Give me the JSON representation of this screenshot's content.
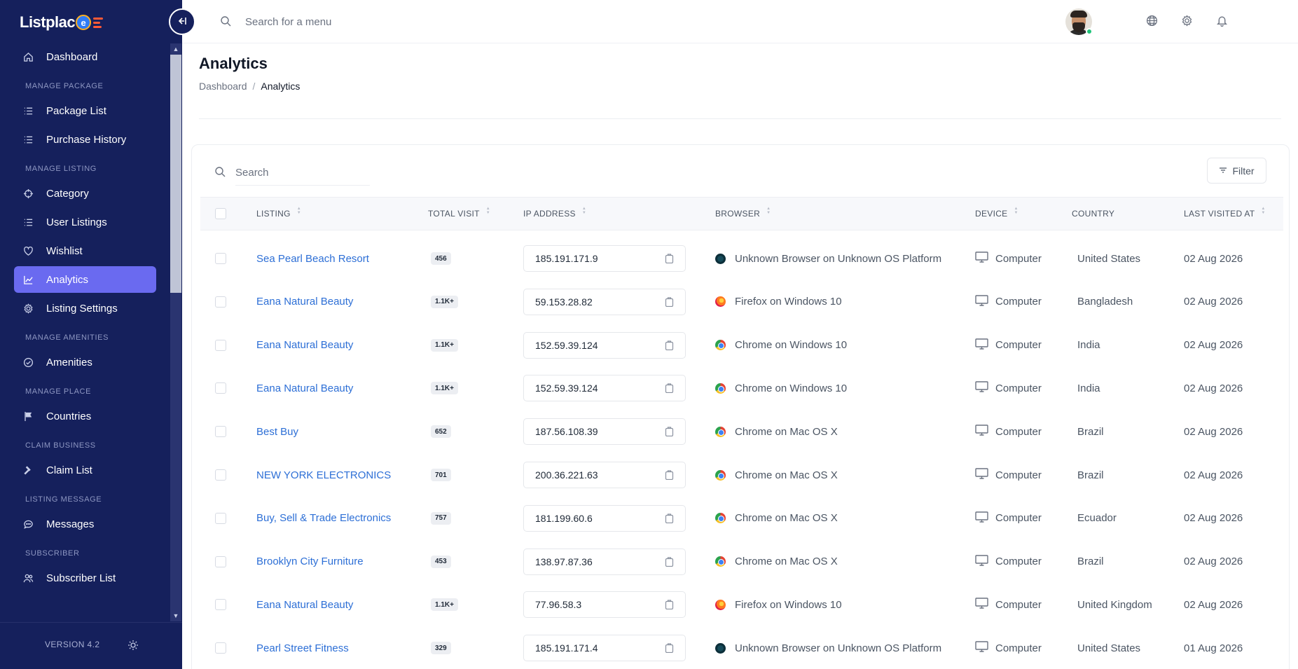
{
  "brand": {
    "name": "Listplac",
    "badge": "e"
  },
  "sidebar": {
    "items": [
      {
        "type": "item",
        "label": "Dashboard",
        "icon": "home-icon",
        "name": "sidebar-item-dashboard",
        "active": false
      },
      {
        "type": "section",
        "label": "MANAGE PACKAGE"
      },
      {
        "type": "item",
        "label": "Package List",
        "icon": "list-icon",
        "name": "sidebar-item-package-list",
        "active": false
      },
      {
        "type": "item",
        "label": "Purchase History",
        "icon": "list-icon",
        "name": "sidebar-item-purchase-history",
        "active": false
      },
      {
        "type": "section",
        "label": "MANAGE LISTING"
      },
      {
        "type": "item",
        "label": "Category",
        "icon": "crosshair-icon",
        "name": "sidebar-item-category",
        "active": false
      },
      {
        "type": "item",
        "label": "User Listings",
        "icon": "list-icon",
        "name": "sidebar-item-user-listings",
        "active": false
      },
      {
        "type": "item",
        "label": "Wishlist",
        "icon": "heart-icon",
        "name": "sidebar-item-wishlist",
        "active": false
      },
      {
        "type": "item",
        "label": "Analytics",
        "icon": "chart-line-icon",
        "name": "sidebar-item-analytics",
        "active": true
      },
      {
        "type": "item",
        "label": "Listing Settings",
        "icon": "gear-icon",
        "name": "sidebar-item-listing-settings",
        "active": false
      },
      {
        "type": "section",
        "label": "MANAGE AMENITIES"
      },
      {
        "type": "item",
        "label": "Amenities",
        "icon": "check-circle-icon",
        "name": "sidebar-item-amenities",
        "active": false
      },
      {
        "type": "section",
        "label": "MANAGE PLACE"
      },
      {
        "type": "item",
        "label": "Countries",
        "icon": "flag-icon",
        "name": "sidebar-item-countries",
        "active": false
      },
      {
        "type": "section",
        "label": "CLAIM BUSINESS"
      },
      {
        "type": "item",
        "label": "Claim List",
        "icon": "gavel-icon",
        "name": "sidebar-item-claim-list",
        "active": false
      },
      {
        "type": "section",
        "label": "LISTING MESSAGE"
      },
      {
        "type": "item",
        "label": "Messages",
        "icon": "chat-icon",
        "name": "sidebar-item-messages",
        "active": false
      },
      {
        "type": "section",
        "label": "SUBSCRIBER"
      },
      {
        "type": "item",
        "label": "Subscriber List",
        "icon": "users-icon",
        "name": "sidebar-item-subscriber-list",
        "active": false
      }
    ],
    "version": "VERSION 4.2"
  },
  "topbar": {
    "search_placeholder": "Search for a menu"
  },
  "page": {
    "title": "Analytics",
    "breadcrumb": {
      "home": "Dashboard",
      "separator": "/",
      "current": "Analytics"
    }
  },
  "table": {
    "search_placeholder": "Search",
    "filter_label": "Filter",
    "columns": {
      "listing": "LISTING",
      "total_visit": "TOTAL VISIT",
      "ip_address": "IP ADDRESS",
      "browser": "BROWSER",
      "device": "DEVICE",
      "country": "COUNTRY",
      "last_visited": "LAST VISITED AT"
    },
    "rows": [
      {
        "listing": "Sea Pearl Beach Resort",
        "visits": "456",
        "ip": "185.191.171.9",
        "browser": "Unknown Browser on Unknown OS Platform",
        "browser_icon": "unknown",
        "device": "Computer",
        "country": "United States",
        "last": "02 Aug 2026"
      },
      {
        "listing": "Eana Natural Beauty",
        "visits": "1.1K+",
        "ip": "59.153.28.82",
        "browser": "Firefox on Windows 10",
        "browser_icon": "firefox",
        "device": "Computer",
        "country": "Bangladesh",
        "last": "02 Aug 2026"
      },
      {
        "listing": "Eana Natural Beauty",
        "visits": "1.1K+",
        "ip": "152.59.39.124",
        "browser": "Chrome on Windows 10",
        "browser_icon": "chrome",
        "device": "Computer",
        "country": "India",
        "last": "02 Aug 2026"
      },
      {
        "listing": "Eana Natural Beauty",
        "visits": "1.1K+",
        "ip": "152.59.39.124",
        "browser": "Chrome on Windows 10",
        "browser_icon": "chrome",
        "device": "Computer",
        "country": "India",
        "last": "02 Aug 2026"
      },
      {
        "listing": "Best Buy",
        "visits": "652",
        "ip": "187.56.108.39",
        "browser": "Chrome on Mac OS X",
        "browser_icon": "chrome",
        "device": "Computer",
        "country": "Brazil",
        "last": "02 Aug 2026"
      },
      {
        "listing": "NEW YORK ELECTRONICS",
        "visits": "701",
        "ip": "200.36.221.63",
        "browser": "Chrome on Mac OS X",
        "browser_icon": "chrome",
        "device": "Computer",
        "country": "Brazil",
        "last": "02 Aug 2026"
      },
      {
        "listing": "Buy, Sell & Trade Electronics",
        "visits": "757",
        "ip": "181.199.60.6",
        "browser": "Chrome on Mac OS X",
        "browser_icon": "chrome",
        "device": "Computer",
        "country": "Ecuador",
        "last": "02 Aug 2026"
      },
      {
        "listing": "Brooklyn City Furniture",
        "visits": "453",
        "ip": "138.97.87.36",
        "browser": "Chrome on Mac OS X",
        "browser_icon": "chrome",
        "device": "Computer",
        "country": "Brazil",
        "last": "02 Aug 2026"
      },
      {
        "listing": "Eana Natural Beauty",
        "visits": "1.1K+",
        "ip": "77.96.58.3",
        "browser": "Firefox on Windows 10",
        "browser_icon": "firefox",
        "device": "Computer",
        "country": "United Kingdom",
        "last": "02 Aug 2026"
      },
      {
        "listing": "Pearl Street Fitness",
        "visits": "329",
        "ip": "185.191.171.4",
        "browser": "Unknown Browser on Unknown OS Platform",
        "browser_icon": "unknown",
        "device": "Computer",
        "country": "United States",
        "last": "01 Aug 2026"
      }
    ]
  },
  "colors": {
    "sidebar_bg": "#15205c",
    "active_item": "#6a6af0",
    "link": "#2d6fd6",
    "status_online": "#1fc47a"
  }
}
